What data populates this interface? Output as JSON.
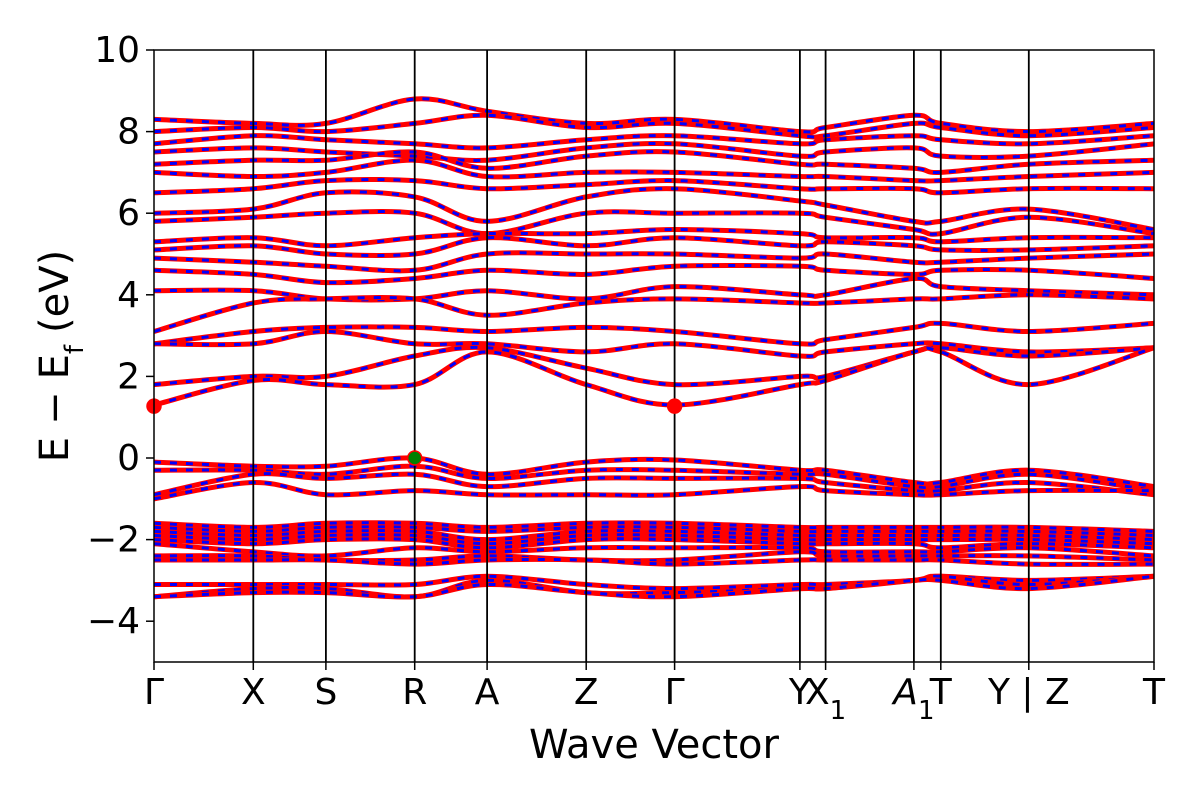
{
  "chart_data": {
    "type": "line",
    "title": "",
    "xlabel": "Wave Vector",
    "ylabel": "E − E_f (eV)",
    "ylabel_parts": {
      "a": "E",
      "minus": "−",
      "b": "E",
      "sub": "f",
      "unit": "(eV)"
    },
    "ylim": [
      -5,
      10
    ],
    "yticks": [
      {
        "value": -4,
        "label": "−4"
      },
      {
        "value": -2,
        "label": "−2"
      },
      {
        "value": 0,
        "label": "0"
      },
      {
        "value": 2,
        "label": "2"
      },
      {
        "value": 4,
        "label": "4"
      },
      {
        "value": 6,
        "label": "6"
      },
      {
        "value": 8,
        "label": "8"
      },
      {
        "value": 10,
        "label": "10"
      }
    ],
    "xlim": [
      0,
      1
    ],
    "kpoints": [
      {
        "label": "Γ",
        "x": 0.0
      },
      {
        "label": "X",
        "x": 0.0993
      },
      {
        "label": "S",
        "x": 0.1719
      },
      {
        "label": "R",
        "x": 0.2607
      },
      {
        "label": "A",
        "x": 0.3331
      },
      {
        "label": "Z",
        "x": 0.4322
      },
      {
        "label": "Γ",
        "x": 0.5206
      },
      {
        "label": "Y",
        "x": 0.6459
      },
      {
        "label": "X",
        "sub": "1",
        "x": 0.6716
      },
      {
        "label": "A",
        "sub": "1",
        "italic": true,
        "x": 0.7599
      },
      {
        "label": "T",
        "x": 0.7868
      },
      {
        "label": "Y | Z",
        "x": 0.8748
      },
      {
        "label": "T",
        "x": 1.0
      }
    ],
    "grid": false,
    "series": [
      {
        "color": "#ff0000",
        "style": "solid",
        "width": 5
      },
      {
        "color": "#0000ff",
        "style": "dashed",
        "width": 3
      }
    ],
    "bands": [
      {
        "y": [
          8.3,
          8.2,
          8.2,
          8.8,
          8.5,
          8.2,
          8.3,
          8.0,
          8.1,
          8.4,
          8.2,
          8.0,
          8.2
        ]
      },
      {
        "y": [
          8.0,
          8.1,
          8.0,
          8.2,
          8.4,
          8.1,
          8.2,
          7.9,
          7.9,
          8.2,
          8.1,
          7.9,
          8.1
        ]
      },
      {
        "y": [
          7.7,
          7.9,
          7.8,
          7.7,
          7.6,
          7.8,
          7.9,
          7.7,
          7.8,
          7.9,
          7.8,
          7.7,
          7.9
        ]
      },
      {
        "y": [
          7.5,
          7.6,
          7.5,
          7.4,
          7.3,
          7.6,
          7.7,
          7.4,
          7.5,
          7.6,
          7.4,
          7.4,
          7.7
        ]
      },
      {
        "y": [
          7.2,
          7.3,
          7.3,
          7.5,
          7.1,
          7.4,
          7.5,
          7.2,
          7.2,
          7.1,
          7.0,
          7.2,
          7.3
        ]
      },
      {
        "y": [
          7.0,
          6.9,
          7.0,
          7.3,
          6.9,
          7.0,
          7.0,
          6.9,
          6.9,
          6.8,
          6.8,
          6.9,
          7.0
        ]
      },
      {
        "y": [
          6.5,
          6.6,
          6.8,
          6.8,
          6.6,
          6.7,
          6.8,
          6.6,
          6.6,
          6.6,
          6.5,
          6.6,
          6.6
        ]
      },
      {
        "y": [
          6.0,
          6.1,
          6.5,
          6.4,
          5.8,
          6.4,
          6.6,
          6.3,
          6.2,
          5.8,
          5.8,
          6.1,
          5.6
        ]
      },
      {
        "y": [
          5.8,
          5.9,
          6.0,
          6.0,
          5.5,
          6.0,
          6.0,
          6.0,
          5.9,
          5.6,
          5.5,
          5.9,
          5.5
        ]
      },
      {
        "y": [
          5.3,
          5.4,
          5.2,
          5.4,
          5.5,
          5.5,
          5.6,
          5.5,
          5.4,
          5.4,
          5.3,
          5.4,
          5.4
        ]
      },
      {
        "y": [
          5.1,
          5.2,
          5.0,
          5.0,
          5.4,
          5.2,
          5.4,
          5.2,
          5.3,
          5.2,
          5.1,
          5.1,
          5.2
        ]
      },
      {
        "y": [
          4.9,
          4.8,
          4.7,
          4.6,
          5.0,
          5.0,
          5.0,
          4.9,
          5.0,
          4.8,
          4.8,
          4.9,
          5.0
        ]
      },
      {
        "y": [
          4.6,
          4.5,
          4.3,
          4.4,
          4.6,
          4.5,
          4.7,
          4.7,
          4.6,
          4.5,
          4.6,
          4.6,
          4.4
        ]
      },
      {
        "y": [
          4.1,
          4.1,
          3.9,
          3.9,
          4.1,
          3.9,
          4.2,
          4.0,
          4.0,
          4.4,
          4.2,
          4.1,
          4.0
        ]
      },
      {
        "y": [
          3.1,
          3.8,
          3.9,
          3.9,
          3.5,
          3.8,
          3.9,
          3.8,
          3.8,
          3.9,
          3.9,
          4.0,
          3.9
        ]
      },
      {
        "y": [
          2.8,
          3.1,
          3.2,
          3.2,
          3.1,
          3.2,
          3.1,
          2.8,
          2.9,
          3.2,
          3.3,
          3.1,
          3.3
        ]
      },
      {
        "y": [
          2.8,
          2.8,
          3.1,
          2.8,
          2.8,
          2.6,
          2.8,
          2.5,
          2.6,
          2.8,
          2.8,
          2.6,
          2.7
        ]
      },
      {
        "y": [
          1.8,
          2.0,
          2.0,
          2.5,
          2.7,
          2.2,
          1.8,
          2.0,
          2.0,
          2.6,
          2.7,
          2.5,
          2.7
        ]
      },
      {
        "y": [
          1.3,
          1.9,
          1.8,
          1.8,
          2.6,
          1.8,
          1.3,
          1.8,
          1.9,
          2.6,
          2.6,
          1.8,
          2.7
        ]
      },
      {
        "y": [
          -0.1,
          -0.2,
          -0.2,
          0.0,
          -0.4,
          -0.1,
          -0.05,
          -0.3,
          -0.3,
          -0.6,
          -0.6,
          -0.3,
          -0.7
        ]
      },
      {
        "y": [
          -0.3,
          -0.3,
          -0.4,
          -0.2,
          -0.5,
          -0.3,
          -0.3,
          -0.4,
          -0.4,
          -0.7,
          -0.7,
          -0.4,
          -0.8
        ]
      },
      {
        "y": [
          -0.9,
          -0.4,
          -0.5,
          -0.4,
          -0.7,
          -0.5,
          -0.5,
          -0.5,
          -0.6,
          -0.8,
          -0.8,
          -0.6,
          -0.9
        ]
      },
      {
        "y": [
          -1.0,
          -0.6,
          -0.9,
          -0.8,
          -0.9,
          -0.9,
          -0.9,
          -0.7,
          -0.8,
          -0.9,
          -0.9,
          -0.8,
          -0.8
        ]
      },
      {
        "y": [
          -1.6,
          -1.7,
          -1.6,
          -1.6,
          -1.7,
          -1.6,
          -1.6,
          -1.7,
          -1.7,
          -1.7,
          -1.7,
          -1.7,
          -1.8
        ]
      },
      {
        "y": [
          -1.7,
          -1.8,
          -1.7,
          -1.7,
          -1.8,
          -1.7,
          -1.7,
          -1.8,
          -1.8,
          -1.8,
          -1.8,
          -1.8,
          -1.9
        ]
      },
      {
        "y": [
          -1.8,
          -1.9,
          -1.8,
          -1.8,
          -2.0,
          -1.8,
          -1.8,
          -1.9,
          -1.9,
          -1.9,
          -1.9,
          -1.9,
          -2.0
        ]
      },
      {
        "y": [
          -1.9,
          -2.0,
          -1.9,
          -1.9,
          -2.1,
          -1.9,
          -1.9,
          -2.0,
          -2.0,
          -2.0,
          -2.0,
          -2.0,
          -2.1
        ]
      },
      {
        "y": [
          -2.0,
          -2.1,
          -2.0,
          -2.0,
          -2.2,
          -2.0,
          -2.0,
          -2.1,
          -2.1,
          -2.1,
          -2.2,
          -2.1,
          -2.2
        ]
      },
      {
        "y": [
          -2.1,
          -2.3,
          -2.4,
          -2.2,
          -2.3,
          -2.2,
          -2.2,
          -2.2,
          -2.3,
          -2.3,
          -2.3,
          -2.2,
          -2.4
        ]
      },
      {
        "y": [
          -2.4,
          -2.4,
          -2.5,
          -2.5,
          -2.4,
          -2.5,
          -2.5,
          -2.3,
          -2.4,
          -2.4,
          -2.4,
          -2.4,
          -2.5
        ]
      },
      {
        "y": [
          -2.5,
          -2.5,
          -2.5,
          -2.6,
          -2.5,
          -2.5,
          -2.6,
          -2.5,
          -2.5,
          -2.5,
          -2.5,
          -2.6,
          -2.6
        ]
      },
      {
        "y": [
          -3.1,
          -3.1,
          -3.1,
          -3.1,
          -2.9,
          -3.1,
          -3.2,
          -3.1,
          -3.1,
          -3.0,
          -2.9,
          -3.0,
          -2.9
        ]
      },
      {
        "y": [
          -3.4,
          -3.2,
          -3.2,
          -3.4,
          -3.0,
          -3.3,
          -3.3,
          -3.2,
          -3.2,
          -3.0,
          -2.9,
          -3.1,
          -2.9
        ]
      },
      {
        "y": [
          -3.4,
          -3.3,
          -3.3,
          -3.4,
          -3.1,
          -3.3,
          -3.4,
          -3.2,
          -3.2,
          -3.0,
          -3.0,
          -3.2,
          -2.9
        ]
      }
    ],
    "markers": [
      {
        "name": "cbm-marker-gamma-start",
        "x": 0.0,
        "y": 1.27,
        "fill": "#ff0000"
      },
      {
        "name": "cbm-marker-gamma-mid",
        "x": 0.5206,
        "y": 1.27,
        "fill": "#ff0000"
      },
      {
        "name": "vbm-marker-r",
        "x": 0.2607,
        "y": 0.0,
        "fill": "#008000",
        "stroke": "#ff0000"
      }
    ]
  }
}
